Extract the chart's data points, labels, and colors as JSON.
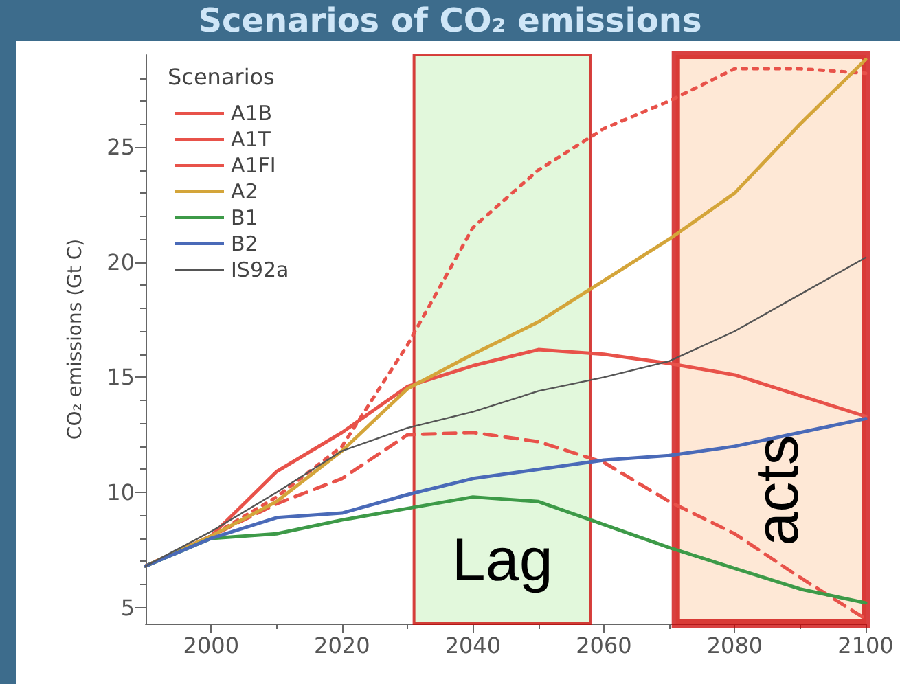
{
  "chart_data": {
    "type": "line",
    "title": "Scenarios of CO₂ emissions",
    "ylabel": "CO₂ emissions (Gt C)",
    "legend_title": "Scenarios",
    "legend": "top left",
    "x": [
      1990,
      2000,
      2010,
      2020,
      2030,
      2040,
      2050,
      2060,
      2070,
      2080,
      2090,
      2100
    ],
    "xlim": [
      1990,
      2100
    ],
    "xticks": [
      2000,
      2020,
      2040,
      2060,
      2080,
      2100
    ],
    "ylim": [
      4.3,
      29
    ],
    "yticks": [
      5,
      10,
      15,
      20,
      25
    ],
    "grid": false,
    "series": [
      {
        "name": "A1B",
        "color": "#e8524a",
        "line_style": "solid",
        "values": [
          6.8,
          8.1,
          10.9,
          12.6,
          14.6,
          15.5,
          16.2,
          16.0,
          15.6,
          15.1,
          14.2,
          13.3
        ]
      },
      {
        "name": "A1T",
        "color": "#e8524a",
        "line_style": "dashed",
        "values": [
          6.8,
          8.1,
          9.5,
          10.6,
          12.5,
          12.6,
          12.2,
          11.3,
          9.6,
          8.2,
          6.3,
          4.5
        ]
      },
      {
        "name": "A1FI",
        "color": "#e8524a",
        "line_style": "dotted",
        "values": [
          6.8,
          8.1,
          9.8,
          12.0,
          16.4,
          21.5,
          24.0,
          25.8,
          27.0,
          28.4,
          28.4,
          28.2
        ]
      },
      {
        "name": "A2",
        "color": "#d4a53a",
        "line_style": "solid",
        "values": [
          6.8,
          8.1,
          9.6,
          11.8,
          14.5,
          16.0,
          17.4,
          19.2,
          21.0,
          23.0,
          26.0,
          28.8
        ]
      },
      {
        "name": "B1",
        "color": "#3d9a48",
        "line_style": "solid",
        "values": [
          6.8,
          8.0,
          8.2,
          8.8,
          9.3,
          9.8,
          9.6,
          8.6,
          7.6,
          6.7,
          5.8,
          5.2
        ]
      },
      {
        "name": "B2",
        "color": "#4a6ab8",
        "line_style": "solid",
        "values": [
          6.8,
          8.0,
          8.9,
          9.1,
          9.9,
          10.6,
          11.0,
          11.4,
          11.6,
          12.0,
          12.6,
          13.2
        ]
      },
      {
        "name": "IS92a",
        "color": "#555555",
        "line_style": "solid",
        "values": [
          6.8,
          8.3,
          10.0,
          11.8,
          12.8,
          13.5,
          14.4,
          15.0,
          15.7,
          17.0,
          18.6,
          20.2
        ]
      }
    ],
    "bands": [
      {
        "axis": "x",
        "from": 2031,
        "to": 2058,
        "label": "Lag",
        "color": "#d8f5d0"
      },
      {
        "axis": "x",
        "from": 2071,
        "to": 2100,
        "label": "acts",
        "color": "#fde0c8"
      }
    ]
  }
}
